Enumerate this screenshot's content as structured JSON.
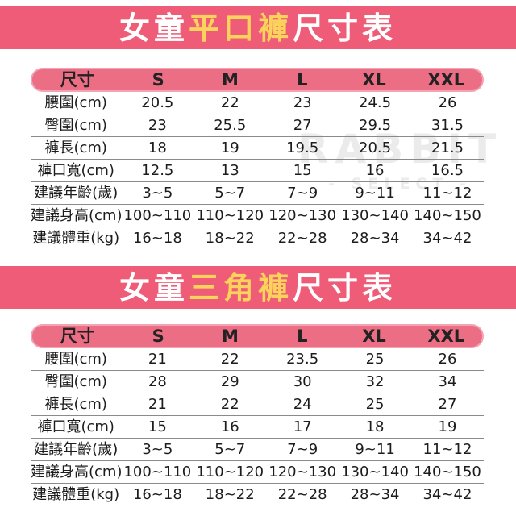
{
  "colors": {
    "banner_pink": "#ee5c77",
    "header_pill_pink": "#eb6e85",
    "pill_border_pink": "#f3a3b2",
    "highlight_yellow": "#fbd35c",
    "banner_text_white": "#ffffff",
    "table_text_dark": "#1c1c1c",
    "divider_gray": "#8a8a8a",
    "watermark_gray": "#ebebeb"
  },
  "watermark": {
    "line1": "RABBIT",
    "line2": "- SELECT -"
  },
  "chart_data": [
    {
      "type": "table",
      "title": "女童平口褲尺寸表",
      "title_prefix": "女童",
      "title_highlight": "平口褲",
      "title_suffix": "尺寸表",
      "columns": [
        "尺寸",
        "S",
        "M",
        "L",
        "XL",
        "XXL"
      ],
      "rows": [
        {
          "label": "腰圍(cm)",
          "values": [
            "20.5",
            "22",
            "23",
            "24.5",
            "26"
          ]
        },
        {
          "label": "臀圍(cm)",
          "values": [
            "23",
            "25.5",
            "27",
            "29.5",
            "31.5"
          ]
        },
        {
          "label": "褲長(cm)",
          "values": [
            "18",
            "19",
            "19.5",
            "20.5",
            "21.5"
          ]
        },
        {
          "label": "褲口寬(cm)",
          "values": [
            "12.5",
            "13",
            "15",
            "16",
            "16.5"
          ]
        },
        {
          "label": "建議年齡(歲)",
          "values": [
            "3~5",
            "5~7",
            "7~9",
            "9~11",
            "11~12"
          ]
        },
        {
          "label": "建議身高(cm)",
          "values": [
            "100~110",
            "110~120",
            "120~130",
            "130~140",
            "140~150"
          ]
        },
        {
          "label": "建議體重(kg)",
          "values": [
            "16~18",
            "18~22",
            "22~28",
            "28~34",
            "34~42"
          ]
        }
      ]
    },
    {
      "type": "table",
      "title": "女童三角褲尺寸表",
      "title_prefix": "女童",
      "title_highlight": "三角褲",
      "title_suffix": "尺寸表",
      "columns": [
        "尺寸",
        "S",
        "M",
        "L",
        "XL",
        "XXL"
      ],
      "rows": [
        {
          "label": "腰圍(cm)",
          "values": [
            "21",
            "22",
            "23.5",
            "25",
            "26"
          ]
        },
        {
          "label": "臀圍(cm)",
          "values": [
            "28",
            "29",
            "30",
            "32",
            "34"
          ]
        },
        {
          "label": "褲長(cm)",
          "values": [
            "21",
            "22",
            "24",
            "25",
            "27"
          ]
        },
        {
          "label": "褲口寬(cm)",
          "values": [
            "15",
            "16",
            "17",
            "18",
            "19"
          ]
        },
        {
          "label": "建議年齡(歲)",
          "values": [
            "3~5",
            "5~7",
            "7~9",
            "9~11",
            "11~12"
          ]
        },
        {
          "label": "建議身高(cm)",
          "values": [
            "100~110",
            "110~120",
            "120~130",
            "130~140",
            "140~150"
          ]
        },
        {
          "label": "建議體重(kg)",
          "values": [
            "16~18",
            "18~22",
            "22~28",
            "28~34",
            "34~42"
          ]
        }
      ]
    }
  ]
}
